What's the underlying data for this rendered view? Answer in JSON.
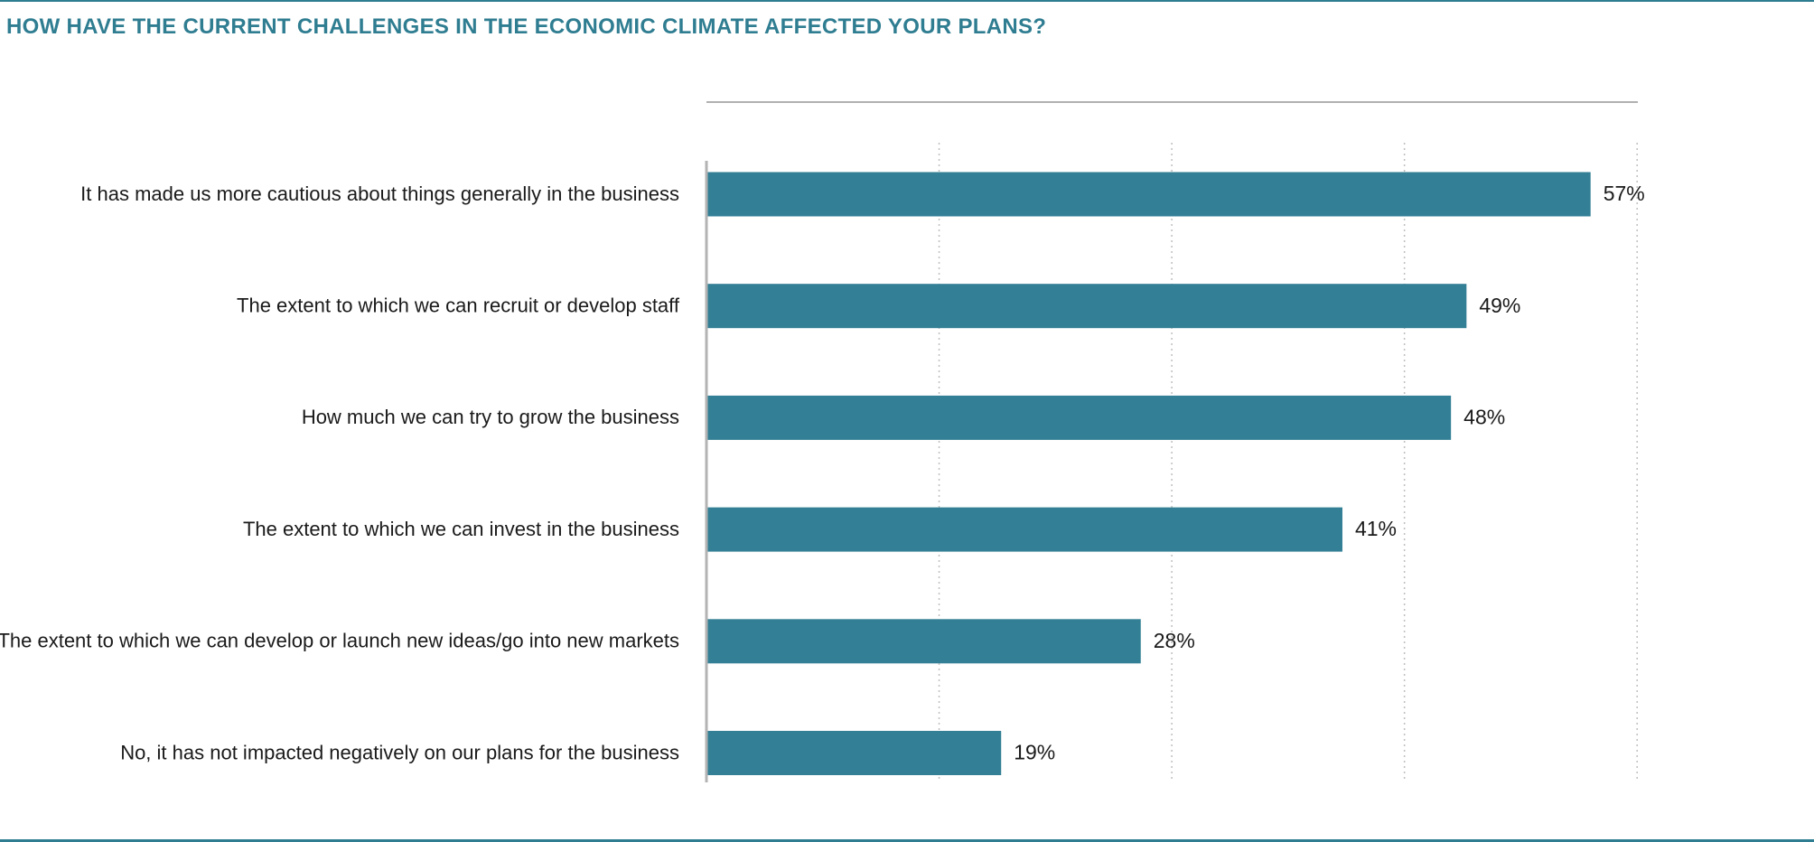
{
  "title": "HOW HAVE THE CURRENT CHALLENGES IN THE ECONOMIC CLIMATE AFFECTED YOUR PLANS?",
  "colors": {
    "accent": "#2f7d91",
    "bar": "#337f95",
    "grid": "#bfbfbf",
    "axis": "#b3b3b3"
  },
  "chart_data": {
    "type": "bar",
    "orientation": "horizontal",
    "categories": [
      "It has made us more cautious about things generally in the business",
      "The extent to which we can recruit or develop staff",
      "How much we can try to grow the business",
      "The extent to which we can invest in the business",
      "The extent to which we can develop or launch new ideas/go into new markets",
      "No, it has not impacted negatively on our plans for the business"
    ],
    "values": [
      57,
      49,
      48,
      41,
      28,
      19
    ],
    "value_labels": [
      "57%",
      "49%",
      "48%",
      "41%",
      "28%",
      "19%"
    ],
    "xlim": [
      0,
      60
    ],
    "grid": true,
    "grid_style": "dotted-vertical"
  }
}
